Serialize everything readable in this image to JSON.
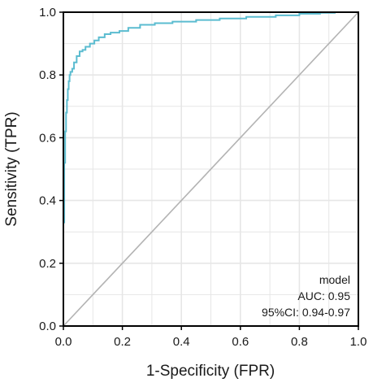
{
  "chart_data": {
    "type": "line",
    "xlabel": "1-Specificity (FPR)",
    "ylabel": "Sensitivity (TPR)",
    "xlim": [
      0,
      1
    ],
    "ylim": [
      0,
      1
    ],
    "xticks": [
      "0.0",
      "0.2",
      "0.4",
      "0.6",
      "0.8",
      "1.0"
    ],
    "yticks": [
      "0.0",
      "0.2",
      "0.4",
      "0.6",
      "0.8",
      "1.0"
    ],
    "grid": true,
    "minor_grid": true,
    "legend_position": "bottom-right",
    "annotation_lines": [
      "model",
      "AUC: 0.95",
      "95%CI: 0.94-0.97"
    ],
    "colors": {
      "roc": "#5bbcd0",
      "diagonal": "#b3b3b3",
      "grid": "#e6e6e6",
      "frame": "#000000"
    },
    "series": [
      {
        "x": [
          0.0,
          0.0,
          0.003,
          0.003,
          0.006,
          0.006,
          0.009,
          0.009,
          0.012,
          0.012,
          0.015,
          0.015,
          0.018,
          0.018,
          0.021,
          0.021,
          0.024,
          0.024,
          0.03,
          0.03,
          0.036,
          0.036,
          0.045,
          0.045,
          0.055,
          0.055,
          0.065,
          0.065,
          0.075,
          0.075,
          0.09,
          0.09,
          0.105,
          0.105,
          0.12,
          0.12,
          0.14,
          0.14,
          0.16,
          0.16,
          0.19,
          0.19,
          0.22,
          0.22,
          0.26,
          0.26,
          0.31,
          0.31,
          0.37,
          0.37,
          0.45,
          0.45,
          0.53,
          0.53,
          0.62,
          0.62,
          0.72,
          0.72,
          0.8,
          0.8,
          0.87,
          0.87,
          0.92,
          0.92,
          1.0
        ],
        "y": [
          0.0,
          0.33,
          0.33,
          0.52,
          0.52,
          0.62,
          0.62,
          0.68,
          0.68,
          0.72,
          0.72,
          0.755,
          0.755,
          0.78,
          0.78,
          0.8,
          0.8,
          0.81,
          0.81,
          0.82,
          0.82,
          0.84,
          0.84,
          0.86,
          0.86,
          0.875,
          0.875,
          0.88,
          0.88,
          0.89,
          0.89,
          0.9,
          0.9,
          0.91,
          0.91,
          0.92,
          0.92,
          0.93,
          0.93,
          0.935,
          0.935,
          0.94,
          0.94,
          0.95,
          0.95,
          0.96,
          0.96,
          0.965,
          0.965,
          0.97,
          0.97,
          0.975,
          0.975,
          0.98,
          0.98,
          0.985,
          0.985,
          0.99,
          0.99,
          0.995,
          0.995,
          0.998,
          0.998,
          1.0,
          1.0
        ]
      }
    ]
  }
}
